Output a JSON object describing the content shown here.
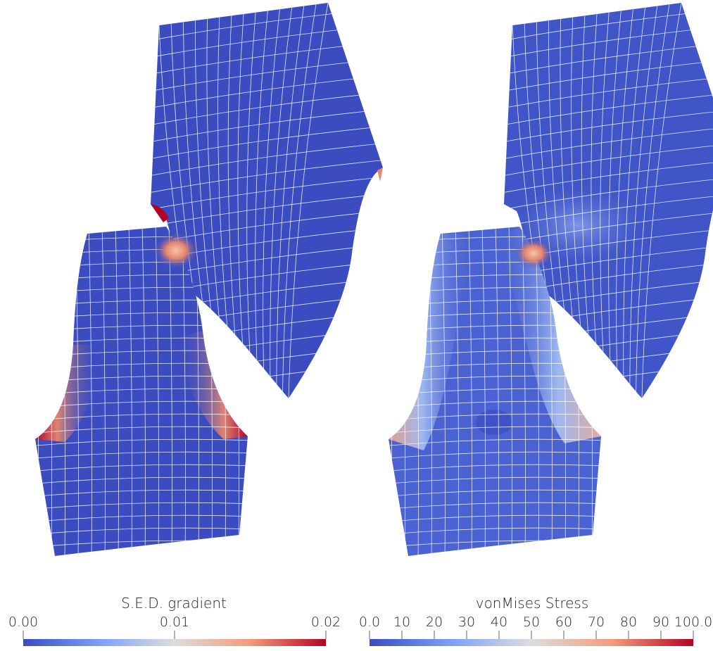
{
  "panels": [
    {
      "name": "sed-gradient",
      "colorbar": {
        "title": "S.E.D. gradient",
        "ticks": [
          "0.00",
          "0.01",
          "0.02"
        ],
        "range": [
          0,
          0.02
        ]
      }
    },
    {
      "name": "vonmises-stress",
      "colorbar": {
        "title": "vonMises Stress",
        "ticks": [
          "0.0",
          "10",
          "20",
          "30",
          "40",
          "50",
          "60",
          "70",
          "80",
          "90",
          "100.0"
        ],
        "range": [
          0,
          100
        ]
      }
    }
  ],
  "colors": {
    "low": "#3b4cc0",
    "mid": "#dddddd",
    "high": "#b40426",
    "mesh": "#ffffff"
  }
}
